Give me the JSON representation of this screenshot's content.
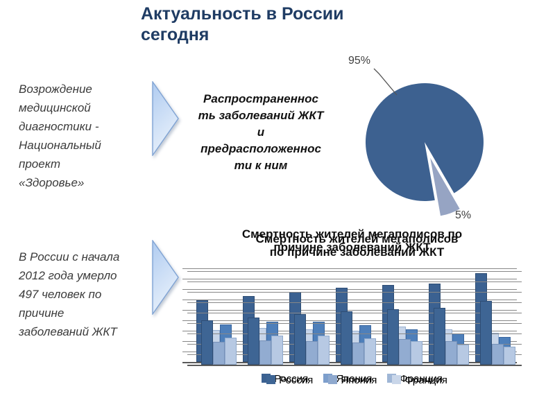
{
  "slide_title": {
    "lines": [
      "Актуальность в России",
      "сегодня"
    ],
    "color": "#1F3C64"
  },
  "left_panel": {
    "block1_lines": [
      "Возрождение",
      "медицинской",
      "диагностики -",
      "Национальный",
      "проект",
      "«Здоровье»"
    ],
    "block2_lines": [
      "В России с начала",
      "2012 года умерло",
      "497 человек по",
      "причине",
      "заболеваний ЖКТ"
    ]
  },
  "pie_section": {
    "caption_lines": [
      "Распространеннос",
      "ть заболеваний ЖКТ",
      "и",
      "предрасположеннос",
      "ти к ним"
    ]
  },
  "chart_data": [
    {
      "type": "pie",
      "values": [
        95,
        5
      ],
      "data_labels": [
        "95%",
        "5%"
      ],
      "colors": [
        "#3D6190",
        "#96A4C3"
      ],
      "exploded": [
        false,
        true
      ],
      "legend_position": "none",
      "caption": "Распространенность заболеваний ЖКТ и предрасположенности к ним"
    },
    {
      "type": "bar",
      "title": "Смертность жителей мегаполисов по причине заболеваний ЖКТ",
      "categories": [
        "",
        "",
        "",
        "",
        "",
        "",
        ""
      ],
      "series": [
        {
          "name": "Россия",
          "values": [
            66,
            70,
            75,
            79,
            82,
            84,
            95
          ]
        },
        {
          "name": "Япония",
          "values": [
            34,
            36,
            35,
            33,
            38,
            35,
            31
          ]
        },
        {
          "name": "Франция",
          "values": [
            40,
            43,
            43,
            39,
            35,
            30,
            27
          ]
        }
      ],
      "ylim": [
        0,
        100
      ],
      "grid": true,
      "legend_position": "bottom",
      "note": "Slide shows two identical charts overlapping with a slight offset; no numeric axis labels are visible, values estimated as % of plot height."
    }
  ],
  "bar_chart_render": {
    "title_back_lines": [
      "Смертность жителей мегаполисов по",
      "причине заболеваний ЖКТ"
    ],
    "title_front_lines": [
      "Смертность жителей мегаполисов",
      "по причине заболеваний ЖКТ"
    ],
    "overlay_scale": 0.72,
    "series_colors": {
      "back": {
        "Россия": "#3B6191",
        "Япония": "#C7D5E9",
        "Франция": "#4E7FBA"
      },
      "front": {
        "Россия": "#3E6594",
        "Япония": "#92ACD1",
        "Франция": "#B7C9E3"
      }
    },
    "series_borders": {
      "back": {
        "Россия": "#2E4D74",
        "Япония": "#97AFD0",
        "Франция": "#3A67A0"
      },
      "front": {
        "Россия": "#2E4D74",
        "Япония": "#7791B8",
        "Франция": "#8FA9CC"
      }
    },
    "legend": {
      "back": [
        {
          "label": "Россия",
          "color": "#3B6191"
        },
        {
          "label": "Япония",
          "color": "#7E9FCC"
        },
        {
          "label": "Франция",
          "color": "#9FB6D6"
        }
      ],
      "front": [
        {
          "label": "Россия",
          "color": "#3E6594"
        },
        {
          "label": "Япония",
          "color": "#8FA9CE"
        },
        {
          "label": "Франция",
          "color": "#C9D6E9"
        }
      ]
    }
  }
}
